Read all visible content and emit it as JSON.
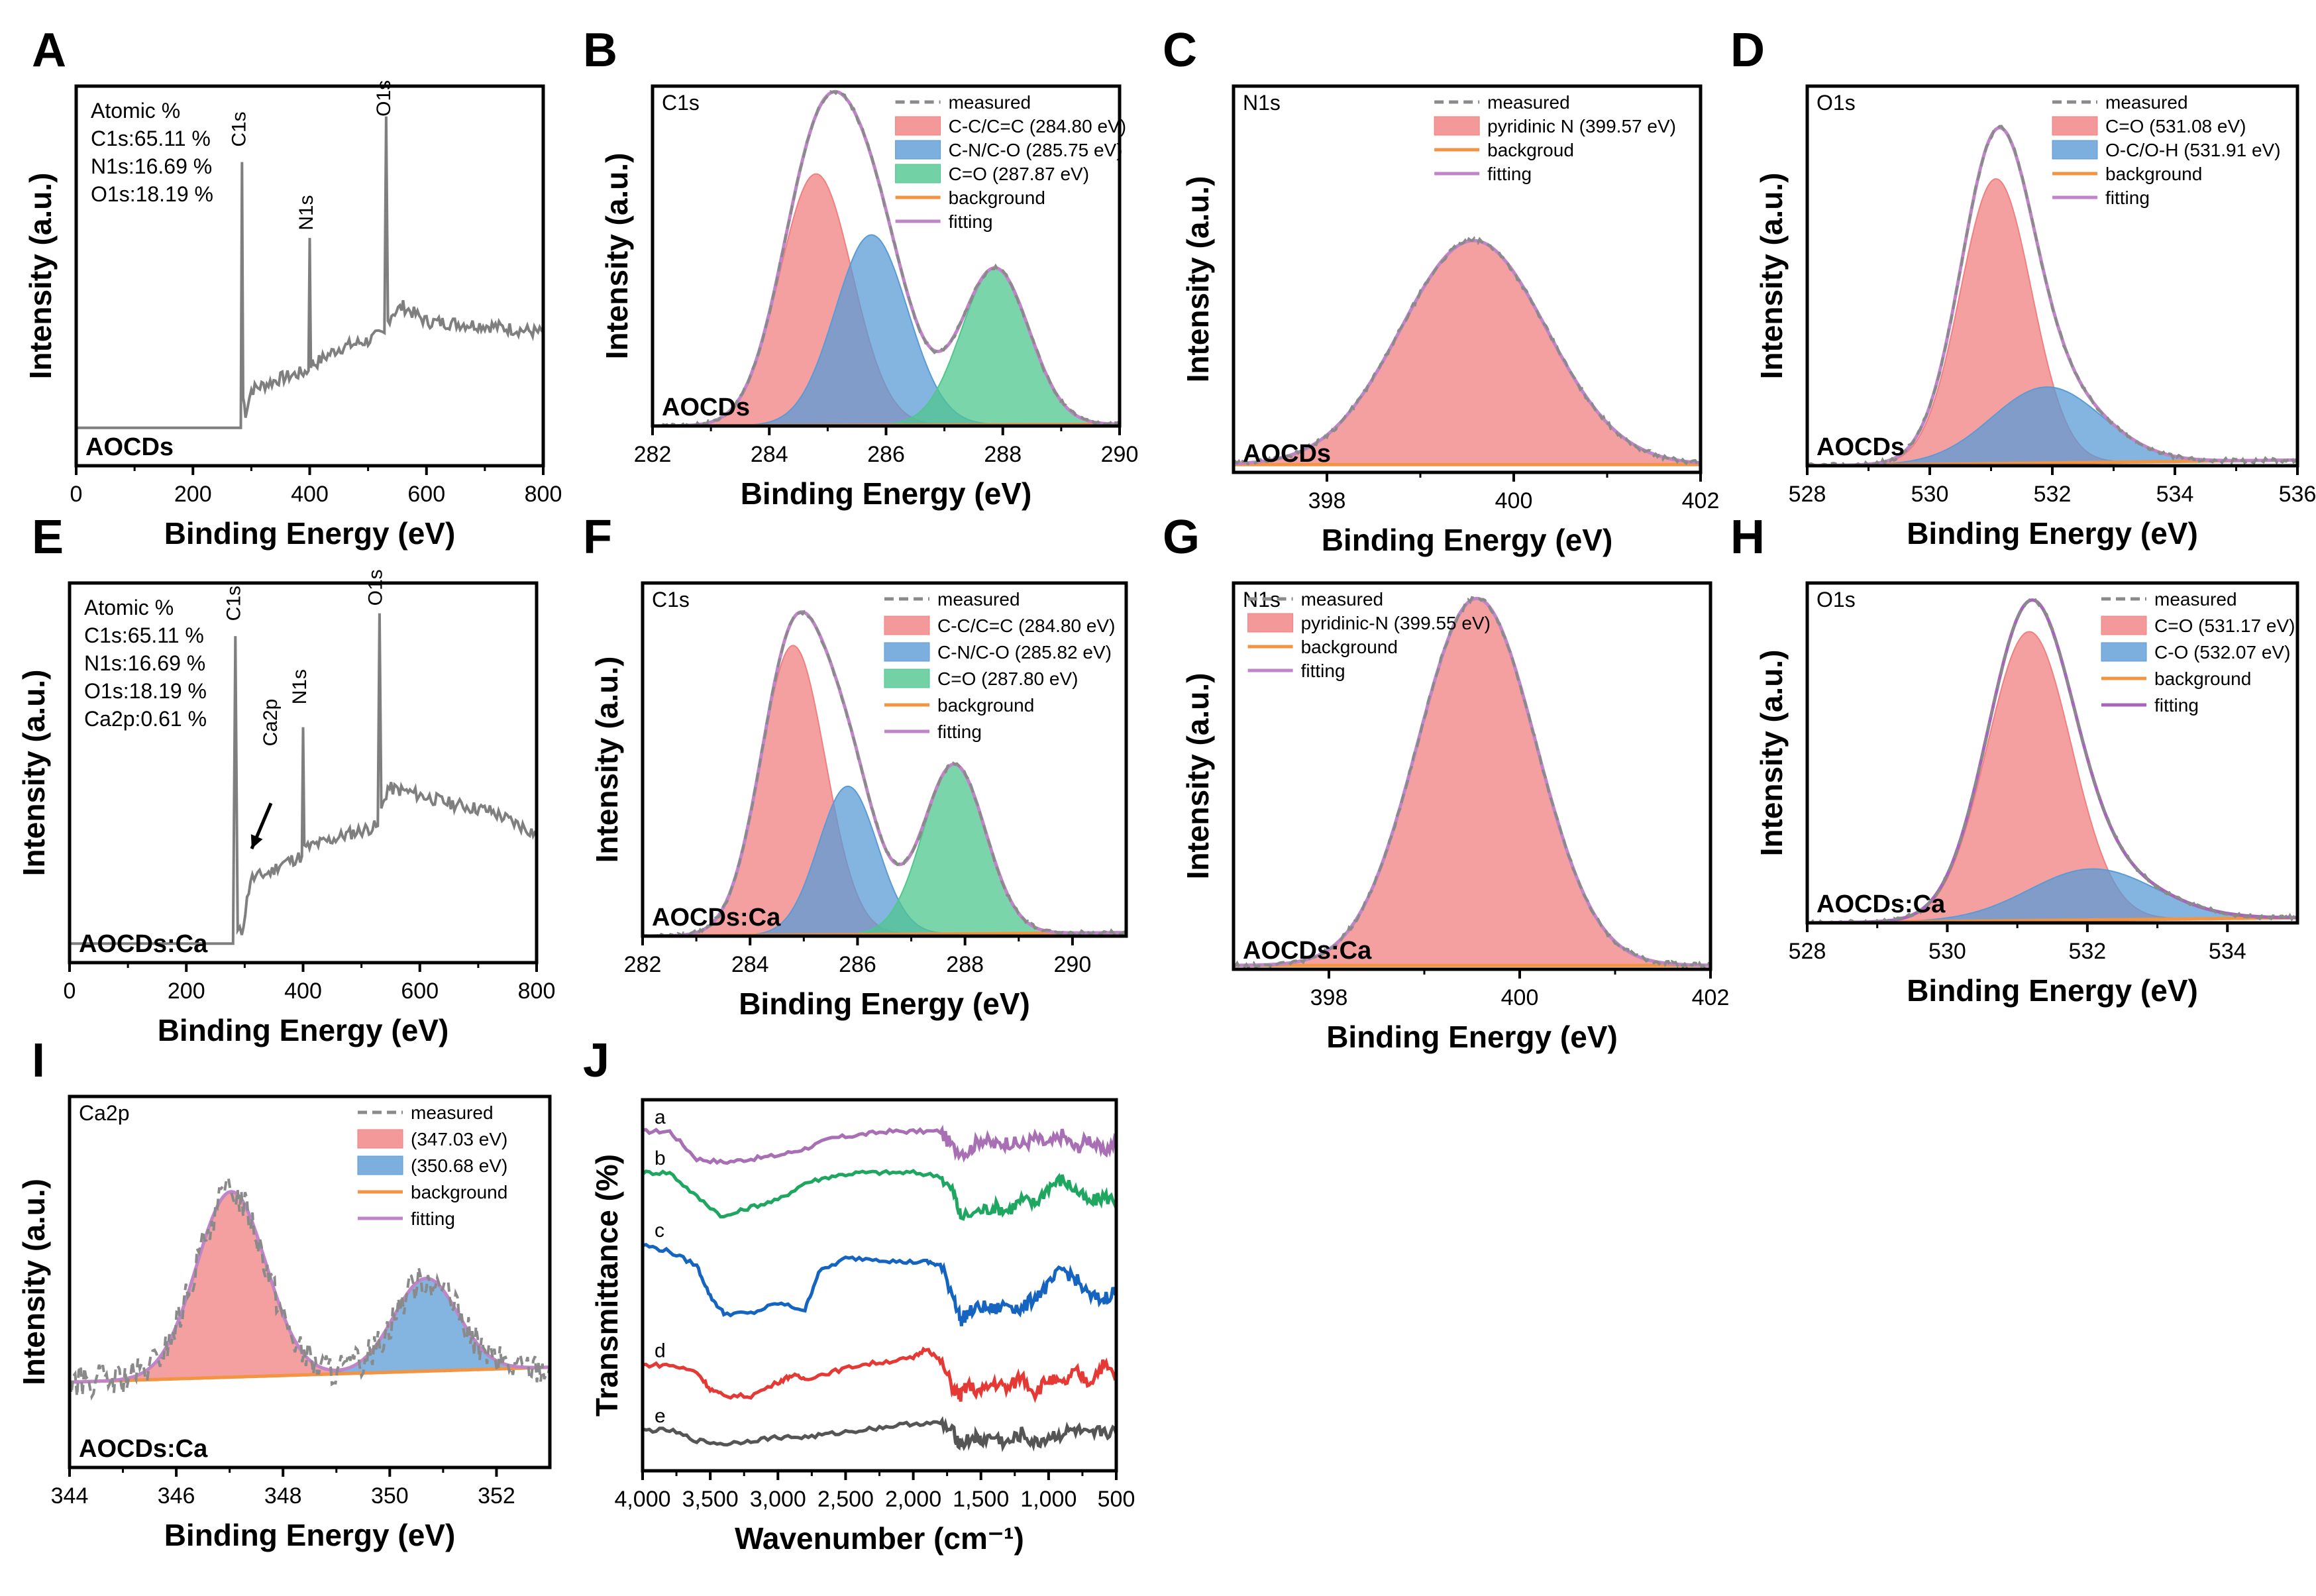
{
  "chart_data": [
    {
      "id": "A",
      "panel_label": "A",
      "type": "line",
      "title": "",
      "xlabel": "Binding Energy (eV)",
      "ylabel": "Intensity (a.u.)",
      "xlim": [
        0,
        800
      ],
      "ylim": [
        0,
        100
      ],
      "reverse_x": false,
      "xticks": [
        0,
        200,
        400,
        600,
        800
      ],
      "xtick_labels": [
        "0",
        "200",
        "400",
        "600",
        "800"
      ],
      "sample": "AOCDs",
      "info_lines": [
        "Atomic %",
        "C1s:65.11 %",
        "N1s:16.69 %",
        "O1s:18.19 %"
      ],
      "peak_labels": [
        {
          "text": "C1s",
          "x": 290,
          "y": 84
        },
        {
          "text": "N1s",
          "x": 405,
          "y": 62
        },
        {
          "text": "O1s",
          "x": 538,
          "y": 92
        }
      ],
      "measured": {
        "color": "#7f7f7f",
        "x": [
          0,
          100,
          200,
          282,
          284,
          286,
          290,
          300,
          350,
          398,
          400,
          402,
          410,
          450,
          500,
          528,
          531,
          534,
          540,
          560,
          600,
          700,
          800
        ],
        "y": [
          10,
          10,
          10,
          10,
          80,
          18,
          14,
          20,
          23,
          25,
          60,
          27,
          27,
          31,
          33,
          35,
          92,
          38,
          40,
          42,
          38,
          37,
          35
        ]
      }
    },
    {
      "id": "B",
      "panel_label": "B",
      "type": "area",
      "title": "C1s",
      "xlabel": "Binding Energy (eV)",
      "ylabel": "Intensity (a.u.)",
      "xlim": [
        282,
        290
      ],
      "ylim": [
        0,
        100
      ],
      "reverse_x": false,
      "xticks": [
        282,
        284,
        286,
        288,
        290
      ],
      "xtick_labels": [
        "282",
        "284",
        "286",
        "288",
        "290"
      ],
      "sample": "AOCDs",
      "legend": [
        {
          "label": "measured",
          "kind": "dash",
          "color": "#8a8a8a"
        },
        {
          "label": "C-C/C=C (284.80 eV)",
          "kind": "fill",
          "color": "#f08080"
        },
        {
          "label": "C-N/C-O (285.75 eV)",
          "kind": "fill",
          "color": "#5b9bd5"
        },
        {
          "label": "C=O (287.87 eV)",
          "kind": "fill",
          "color": "#4fc78f"
        },
        {
          "label": "background",
          "kind": "line",
          "color": "#f39443"
        },
        {
          "label": "fitting",
          "kind": "line",
          "color": "#c084c9"
        }
      ],
      "background": [
        0,
        0.5
      ],
      "series": [
        {
          "name": "C-C/C=C",
          "center": 284.8,
          "height": 74,
          "width": 0.62,
          "color": "#f08080"
        },
        {
          "name": "C-N/C-O",
          "center": 285.75,
          "height": 56,
          "width": 0.62,
          "color": "#5b9bd5"
        },
        {
          "name": "C=O",
          "center": 287.87,
          "height": 46,
          "width": 0.58,
          "color": "#4fc78f"
        }
      ]
    },
    {
      "id": "C",
      "panel_label": "C",
      "type": "area",
      "title": "N1s",
      "xlabel": "Binding Energy (eV)",
      "ylabel": "Intensity (a.u.)",
      "xlim": [
        397,
        402
      ],
      "ylim": [
        0,
        100
      ],
      "reverse_x": false,
      "xticks": [
        398,
        400,
        402
      ],
      "xtick_labels": [
        "398",
        "400",
        "402"
      ],
      "sample": "AOCDs",
      "legend": [
        {
          "label": "measured",
          "kind": "dash",
          "color": "#8a8a8a"
        },
        {
          "label": "pyridinic N (399.57 eV)",
          "kind": "fill",
          "color": "#f08080"
        },
        {
          "label": "backgroud",
          "kind": "line",
          "color": "#f39443"
        },
        {
          "label": "fitting",
          "kind": "line",
          "color": "#c084c9"
        }
      ],
      "background": [
        2,
        2
      ],
      "series": [
        {
          "name": "pyridinic N",
          "center": 399.57,
          "height": 58,
          "width": 0.78,
          "color": "#f08080"
        }
      ]
    },
    {
      "id": "D",
      "panel_label": "D",
      "type": "area",
      "title": "O1s",
      "xlabel": "Binding Energy (eV)",
      "ylabel": "Intensity (a.u.)",
      "xlim": [
        528,
        536
      ],
      "ylim": [
        0,
        100
      ],
      "reverse_x": false,
      "xticks": [
        528,
        530,
        532,
        534,
        536
      ],
      "xtick_labels": [
        "528",
        "530",
        "532",
        "534",
        "536"
      ],
      "sample": "AOCDs",
      "legend": [
        {
          "label": "measured",
          "kind": "dash",
          "color": "#8a8a8a"
        },
        {
          "label": "C=O (531.08 eV)",
          "kind": "fill",
          "color": "#f08080"
        },
        {
          "label": "O-C/O-H (531.91 eV)",
          "kind": "fill",
          "color": "#5b9bd5"
        },
        {
          "label": "background",
          "kind": "line",
          "color": "#f39443"
        },
        {
          "label": "fitting",
          "kind": "line",
          "color": "#c084c9"
        }
      ],
      "background": [
        0,
        1.5
      ],
      "series": [
        {
          "name": "C=O",
          "center": 531.08,
          "height": 75,
          "width": 0.58,
          "color": "#f08080"
        },
        {
          "name": "O-C/O-H",
          "center": 531.91,
          "height": 20,
          "width": 0.9,
          "color": "#5b9bd5"
        }
      ]
    },
    {
      "id": "E",
      "panel_label": "E",
      "type": "line",
      "title": "",
      "xlabel": "Binding Energy (eV)",
      "ylabel": "Intensity (a.u.)",
      "xlim": [
        0,
        800
      ],
      "ylim": [
        0,
        100
      ],
      "reverse_x": false,
      "xticks": [
        0,
        200,
        400,
        600,
        800
      ],
      "xtick_labels": [
        "0",
        "200",
        "400",
        "600",
        "800"
      ],
      "sample": "AOCDs:Ca",
      "info_lines": [
        "Atomic %",
        "C1s:65.11 %",
        "N1s:16.69 %",
        "O1s:18.19 %",
        "Ca2p:0.61 %"
      ],
      "peak_labels": [
        {
          "text": "C1s",
          "x": 292,
          "y": 90
        },
        {
          "text": "N1s",
          "x": 405,
          "y": 68
        },
        {
          "text": "O1s",
          "x": 535,
          "y": 94
        },
        {
          "text": "Ca2p",
          "x": 355,
          "y": 57
        }
      ],
      "arrow": {
        "from": [
          345,
          42
        ],
        "to": [
          312,
          30
        ]
      },
      "measured": {
        "color": "#7f7f7f",
        "x": [
          0,
          100,
          200,
          280,
          284,
          288,
          295,
          310,
          347,
          360,
          398,
          400,
          402,
          420,
          480,
          528,
          531,
          534,
          545,
          580,
          650,
          720,
          800
        ],
        "y": [
          5,
          5,
          5,
          5,
          86,
          8,
          8,
          22,
          24,
          26,
          28,
          62,
          30,
          31,
          34,
          36,
          92,
          40,
          46,
          45,
          42,
          40,
          34
        ]
      }
    },
    {
      "id": "F",
      "panel_label": "F",
      "type": "area",
      "title": "C1s",
      "xlabel": "Binding Energy (eV)",
      "ylabel": "Intensity (a.u.)",
      "xlim": [
        282,
        291
      ],
      "ylim": [
        0,
        100
      ],
      "reverse_x": false,
      "xticks": [
        282,
        284,
        286,
        288,
        290
      ],
      "xtick_labels": [
        "282",
        "284",
        "286",
        "288",
        "290"
      ],
      "sample": "AOCDs:Ca",
      "legend": [
        {
          "label": "measured",
          "kind": "dash",
          "color": "#8a8a8a"
        },
        {
          "label": "C-C/C=C (284.80 eV)",
          "kind": "fill",
          "color": "#f08080"
        },
        {
          "label": "C-N/C-O (285.82 eV)",
          "kind": "fill",
          "color": "#5b9bd5"
        },
        {
          "label": "C=O (287.80 eV)",
          "kind": "fill",
          "color": "#4fc78f"
        },
        {
          "label": "background",
          "kind": "line",
          "color": "#f39443"
        },
        {
          "label": "fitting",
          "kind": "line",
          "color": "#c084c9"
        }
      ],
      "background": [
        0,
        1
      ],
      "series": [
        {
          "name": "C-C/C=C",
          "center": 284.8,
          "height": 82,
          "width": 0.6,
          "color": "#f08080"
        },
        {
          "name": "C-N/C-O",
          "center": 285.82,
          "height": 42,
          "width": 0.55,
          "color": "#5b9bd5"
        },
        {
          "name": "C=O",
          "center": 287.8,
          "height": 48,
          "width": 0.58,
          "color": "#4fc78f"
        }
      ]
    },
    {
      "id": "G",
      "panel_label": "G",
      "type": "area",
      "title": "N1s",
      "xlabel": "Binding Energy (eV)",
      "ylabel": "Intensity (a.u.)",
      "xlim": [
        397,
        402
      ],
      "ylim": [
        0,
        100
      ],
      "reverse_x": false,
      "xticks": [
        398,
        400,
        402
      ],
      "xtick_labels": [
        "398",
        "400",
        "402"
      ],
      "sample": "AOCDs:Ca",
      "legend": [
        {
          "label": "measured",
          "kind": "dash",
          "color": "#8a8a8a"
        },
        {
          "label": "pyridinic-N (399.55 eV)",
          "kind": "fill",
          "color": "#f08080"
        },
        {
          "label": "background",
          "kind": "line",
          "color": "#f39443"
        },
        {
          "label": "fitting",
          "kind": "line",
          "color": "#c084c9"
        }
      ],
      "background": [
        1,
        1
      ],
      "series": [
        {
          "name": "pyridinic-N",
          "center": 399.55,
          "height": 95,
          "width": 0.62,
          "color": "#f08080"
        }
      ]
    },
    {
      "id": "H",
      "panel_label": "H",
      "type": "area",
      "title": "O1s",
      "xlabel": "Binding Energy (eV)",
      "ylabel": "Intensity (a.u.)",
      "xlim": [
        528,
        535
      ],
      "ylim": [
        0,
        100
      ],
      "reverse_x": false,
      "xticks": [
        528,
        530,
        532,
        534
      ],
      "xtick_labels": [
        "528",
        "530",
        "532",
        "534"
      ],
      "sample": "AOCDs:Ca",
      "legend": [
        {
          "label": "measured",
          "kind": "dash",
          "color": "#8a8a8a"
        },
        {
          "label": "C=O (531.17 eV)",
          "kind": "fill",
          "color": "#f08080"
        },
        {
          "label": "C-O (532.07 eV)",
          "kind": "fill",
          "color": "#5b9bd5"
        },
        {
          "label": "background",
          "kind": "line",
          "color": "#f39443"
        },
        {
          "label": "fitting",
          "kind": "line",
          "color": "#a565b8"
        }
      ],
      "background": [
        0,
        1.5
      ],
      "series": [
        {
          "name": "C=O",
          "center": 531.17,
          "height": 85,
          "width": 0.6,
          "color": "#f08080"
        },
        {
          "name": "C-O",
          "center": 532.07,
          "height": 15,
          "width": 0.9,
          "color": "#5b9bd5"
        }
      ]
    },
    {
      "id": "I",
      "panel_label": "I",
      "type": "area",
      "title": "Ca2p",
      "xlabel": "Binding Energy (eV)",
      "ylabel": "Intensity (a.u.)",
      "xlim": [
        344,
        353
      ],
      "ylim": [
        0,
        100
      ],
      "reverse_x": false,
      "xticks": [
        344,
        346,
        348,
        350,
        352
      ],
      "xtick_labels": [
        "344",
        "346",
        "348",
        "350",
        "352"
      ],
      "sample": "AOCDs:Ca",
      "baseline": 28,
      "legend": [
        {
          "label": "measured",
          "kind": "dash",
          "color": "#8a8a8a"
        },
        {
          "label": "(347.03 eV)",
          "kind": "fill",
          "color": "#f08080"
        },
        {
          "label": "(350.68 eV)",
          "kind": "fill",
          "color": "#5b9bd5"
        },
        {
          "label": "background",
          "kind": "line",
          "color": "#f39443"
        },
        {
          "label": "fitting",
          "kind": "line",
          "color": "#c084c9"
        }
      ],
      "background": [
        23,
        27
      ],
      "series": [
        {
          "name": "347.03 eV",
          "center": 347.03,
          "height": 50,
          "width": 0.65,
          "color": "#f08080"
        },
        {
          "name": "350.68 eV",
          "center": 350.68,
          "height": 25,
          "width": 0.6,
          "color": "#5b9bd5"
        }
      ]
    },
    {
      "id": "J",
      "panel_label": "J",
      "type": "line",
      "title": "",
      "xlabel": "Wavenumber (cm⁻¹)",
      "ylabel": "Transmittance (%)",
      "xlim": [
        4000,
        500
      ],
      "ylim": [
        0,
        100
      ],
      "reverse_x": true,
      "xticks": [
        4000,
        3500,
        3000,
        2500,
        2000,
        1500,
        1000,
        500
      ],
      "xtick_labels": [
        "4,000",
        "3,500",
        "3,000",
        "2,500",
        "2,000",
        "1,500",
        "1,000",
        "500"
      ],
      "series": [
        {
          "name": "a",
          "color": "#a86fb5",
          "x": [
            4000,
            3800,
            3600,
            3400,
            3200,
            3000,
            2800,
            2600,
            2400,
            2200,
            2000,
            1800,
            1700,
            1600,
            1500,
            1400,
            1300,
            1200,
            1100,
            1000,
            900,
            800,
            700,
            600,
            500
          ],
          "y": [
            93,
            93,
            85,
            84,
            85,
            86,
            88,
            91,
            92,
            93,
            93,
            93,
            88,
            87,
            91,
            89,
            90,
            89,
            91,
            89,
            92,
            88,
            91,
            87,
            90
          ]
        },
        {
          "name": "b",
          "color": "#1fa761",
          "x": [
            4000,
            3800,
            3600,
            3400,
            3200,
            3000,
            2800,
            2600,
            2400,
            2200,
            2000,
            1800,
            1700,
            1650,
            1500,
            1400,
            1300,
            1200,
            1100,
            1000,
            900,
            800,
            700,
            600,
            500
          ],
          "y": [
            81,
            81,
            74,
            68,
            71,
            73,
            78,
            80,
            81,
            81,
            81,
            80,
            75,
            68,
            70,
            71,
            70,
            73,
            72,
            77,
            79,
            76,
            72,
            74,
            73
          ]
        },
        {
          "name": "c",
          "color": "#1565c0",
          "x": [
            4000,
            3800,
            3600,
            3500,
            3400,
            3200,
            3000,
            2800,
            2700,
            2500,
            2300,
            2100,
            1900,
            1800,
            1700,
            1650,
            1600,
            1500,
            1400,
            1300,
            1200,
            1100,
            1000,
            900,
            800,
            700,
            600,
            500
          ],
          "y": [
            60,
            58,
            54,
            45,
            40,
            40,
            43,
            41,
            52,
            56,
            56,
            55,
            55,
            54,
            45,
            38,
            40,
            42,
            41,
            43,
            41,
            45,
            48,
            53,
            50,
            45,
            44,
            47
          ]
        },
        {
          "name": "d",
          "color": "#e53935",
          "x": [
            4000,
            3800,
            3600,
            3500,
            3400,
            3200,
            3000,
            2900,
            2800,
            2600,
            2400,
            2200,
            2000,
            1900,
            1800,
            1700,
            1650,
            1600,
            1500,
            1400,
            1300,
            1200,
            1100,
            1000,
            900,
            800,
            700,
            600,
            500
          ],
          "y": [
            25,
            25,
            23,
            18,
            16,
            16,
            20,
            22,
            21,
            23,
            25,
            26,
            27,
            30,
            26,
            18,
            16,
            19,
            17,
            20,
            18,
            22,
            17,
            21,
            19,
            23,
            20,
            25,
            22
          ]
        },
        {
          "name": "e",
          "color": "#555555",
          "x": [
            4000,
            3800,
            3600,
            3400,
            3200,
            3000,
            2800,
            2600,
            2400,
            2200,
            2000,
            1800,
            1700,
            1650,
            1550,
            1500,
            1400,
            1300,
            1200,
            1100,
            1000,
            900,
            800,
            700,
            600,
            500
          ],
          "y": [
            6,
            6,
            3,
            2,
            3,
            4,
            4,
            5,
            6,
            7,
            8,
            8,
            5,
            2,
            4,
            3,
            4,
            2,
            5,
            2,
            4,
            5,
            6,
            4,
            6,
            5
          ]
        }
      ]
    }
  ]
}
